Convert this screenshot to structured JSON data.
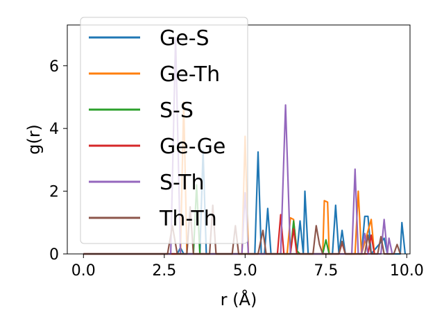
{
  "chart_data": {
    "type": "line",
    "xlabel": "r (Å)",
    "ylabel": "g(r)",
    "xlim": [
      -0.5,
      10.1
    ],
    "ylim": [
      0,
      7.3
    ],
    "xticks": [
      "0.0",
      "2.5",
      "5.0",
      "7.5",
      "10.0"
    ],
    "xtick_values": [
      0,
      2.5,
      5,
      7.5,
      10
    ],
    "yticks": [
      "0",
      "2",
      "4",
      "6"
    ],
    "ytick_values": [
      0,
      2,
      4,
      6
    ],
    "grid": false,
    "legend_position": "upper-left",
    "series": [
      {
        "name": "Ge-S",
        "color": "#1f77b4",
        "points": [
          [
            0,
            0
          ],
          [
            2.9,
            0
          ],
          [
            3.0,
            0.2
          ],
          [
            3.1,
            0
          ],
          [
            3.6,
            0
          ],
          [
            3.7,
            3.3
          ],
          [
            3.8,
            0
          ],
          [
            5.3,
            0
          ],
          [
            5.4,
            3.25
          ],
          [
            5.5,
            0
          ],
          [
            5.6,
            0
          ],
          [
            5.7,
            1.45
          ],
          [
            5.8,
            0
          ],
          [
            6.6,
            0
          ],
          [
            6.7,
            1.05
          ],
          [
            6.8,
            0
          ],
          [
            6.85,
            2.0
          ],
          [
            6.95,
            0
          ],
          [
            7.7,
            0
          ],
          [
            7.8,
            1.55
          ],
          [
            7.9,
            0
          ],
          [
            8.0,
            0.75
          ],
          [
            8.1,
            0
          ],
          [
            8.6,
            0
          ],
          [
            8.7,
            1.2
          ],
          [
            8.8,
            1.2
          ],
          [
            8.9,
            0
          ],
          [
            9.3,
            0.5
          ],
          [
            9.4,
            0
          ],
          [
            9.8,
            0
          ],
          [
            9.85,
            1.0
          ],
          [
            9.95,
            0
          ]
        ]
      },
      {
        "name": "Ge-Th",
        "color": "#ff7f0e",
        "points": [
          [
            0,
            0
          ],
          [
            3.0,
            0
          ],
          [
            3.1,
            4.85
          ],
          [
            3.2,
            0
          ],
          [
            4.9,
            0
          ],
          [
            5.0,
            3.75
          ],
          [
            5.1,
            0
          ],
          [
            6.3,
            0
          ],
          [
            6.4,
            1.15
          ],
          [
            6.5,
            1.1
          ],
          [
            6.6,
            0
          ],
          [
            7.4,
            0
          ],
          [
            7.45,
            1.7
          ],
          [
            7.55,
            1.65
          ],
          [
            7.6,
            0
          ],
          [
            8.4,
            0
          ],
          [
            8.5,
            2.0
          ],
          [
            8.6,
            0
          ],
          [
            8.9,
            1.1
          ],
          [
            9.0,
            0
          ]
        ]
      },
      {
        "name": "S-S",
        "color": "#2ca02c",
        "points": [
          [
            0,
            0
          ],
          [
            3.4,
            0
          ],
          [
            3.5,
            2.2
          ],
          [
            3.6,
            0
          ],
          [
            6.4,
            0
          ],
          [
            6.5,
            1.05
          ],
          [
            6.6,
            0.1
          ],
          [
            6.7,
            0
          ],
          [
            7.4,
            0
          ],
          [
            7.5,
            0.45
          ],
          [
            7.6,
            0
          ]
        ]
      },
      {
        "name": "Ge-Ge",
        "color": "#d62728",
        "points": [
          [
            0,
            0
          ],
          [
            6.0,
            0
          ],
          [
            6.1,
            1.25
          ],
          [
            6.2,
            0
          ],
          [
            6.4,
            0
          ],
          [
            6.5,
            0.8
          ],
          [
            6.6,
            0
          ],
          [
            7.9,
            0
          ],
          [
            8.0,
            0.35
          ],
          [
            8.1,
            0
          ],
          [
            8.8,
            0
          ],
          [
            8.9,
            0.6
          ],
          [
            9.0,
            0
          ]
        ]
      },
      {
        "name": "S-Th",
        "color": "#9467bd",
        "points": [
          [
            0,
            0
          ],
          [
            2.7,
            0
          ],
          [
            2.85,
            6.9
          ],
          [
            3.0,
            0
          ],
          [
            4.9,
            0
          ],
          [
            5.0,
            1.95
          ],
          [
            5.1,
            0
          ],
          [
            6.1,
            0
          ],
          [
            6.25,
            4.75
          ],
          [
            6.4,
            0
          ],
          [
            8.3,
            0
          ],
          [
            8.4,
            2.7
          ],
          [
            8.5,
            0
          ],
          [
            8.6,
            0
          ],
          [
            8.7,
            0.65
          ],
          [
            8.8,
            0
          ],
          [
            9.2,
            0
          ],
          [
            9.3,
            1.1
          ],
          [
            9.4,
            0
          ],
          [
            9.45,
            0.5
          ],
          [
            9.55,
            0
          ]
        ]
      },
      {
        "name": "Th-Th",
        "color": "#8c564b",
        "points": [
          [
            0,
            0
          ],
          [
            2.6,
            0
          ],
          [
            2.75,
            0.9
          ],
          [
            2.9,
            0
          ],
          [
            3.2,
            0
          ],
          [
            3.3,
            1.5
          ],
          [
            3.4,
            0
          ],
          [
            3.9,
            0
          ],
          [
            4.0,
            1.55
          ],
          [
            4.1,
            0
          ],
          [
            4.6,
            0
          ],
          [
            4.7,
            0.9
          ],
          [
            4.8,
            0
          ],
          [
            5.4,
            0
          ],
          [
            5.55,
            0.75
          ],
          [
            5.65,
            0
          ],
          [
            7.1,
            0
          ],
          [
            7.2,
            0.9
          ],
          [
            7.3,
            0.3
          ],
          [
            7.4,
            0
          ],
          [
            7.9,
            0
          ],
          [
            8.0,
            0.4
          ],
          [
            8.1,
            0
          ],
          [
            8.7,
            0
          ],
          [
            8.8,
            0.6
          ],
          [
            8.9,
            0
          ],
          [
            9.1,
            0
          ],
          [
            9.2,
            0.55
          ],
          [
            9.3,
            0
          ],
          [
            9.6,
            0
          ],
          [
            9.7,
            0.3
          ],
          [
            9.8,
            0
          ]
        ]
      }
    ]
  }
}
